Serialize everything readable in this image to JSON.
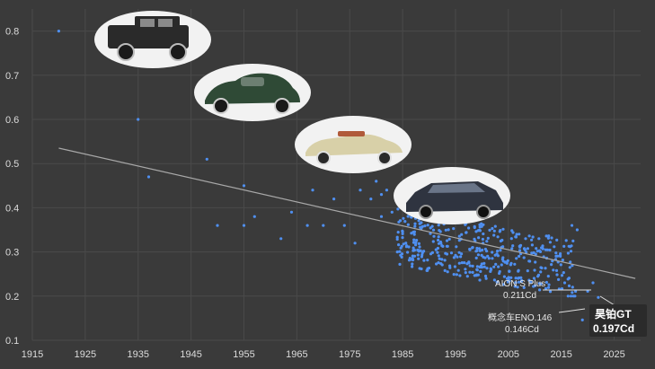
{
  "chart_data": {
    "type": "scatter",
    "title": "",
    "xlabel": "",
    "ylabel": "",
    "xlim": [
      1915,
      2030
    ],
    "ylim": [
      0.1,
      0.85
    ],
    "x_ticks": [
      1915,
      1925,
      1935,
      1945,
      1955,
      1965,
      1975,
      1985,
      1995,
      2005,
      2015,
      2025
    ],
    "y_ticks": [
      0.1,
      0.2,
      0.3,
      0.4,
      0.5,
      0.6,
      0.7,
      0.8
    ],
    "x_tick_labels": [
      "1915",
      "1925",
      "1935",
      "1945",
      "1955",
      "1965",
      "1975",
      "1985",
      "1995",
      "2005",
      "2015",
      "2025"
    ],
    "y_tick_labels": [
      "0.1",
      "0.2",
      "0.3",
      "0.4",
      "0.5",
      "0.6",
      "0.7",
      "0.8"
    ],
    "grid": true,
    "point_color": "#4f8ff0",
    "trendline": {
      "x": [
        1920,
        2029
      ],
      "y": [
        0.535,
        0.24
      ],
      "color": "#a8a8a8"
    },
    "annotations": [
      {
        "x": 2021,
        "y": 0.211,
        "line1": "AION S Plus",
        "line2": "0.211Cd"
      },
      {
        "x": 2019,
        "y": 0.146,
        "line1": "概念车ENO.146",
        "line2": "0.146Cd"
      }
    ],
    "highlight": {
      "x": 2022,
      "y": 0.197,
      "line1": "昊铂GT",
      "line2": "0.197Cd"
    }
  },
  "illustrations": [
    {
      "name": "vintage-sedan-1930s-icon",
      "body_color": "#2a2a2a"
    },
    {
      "name": "green-coupe-1940s-icon",
      "body_color": "#2f4a36"
    },
    {
      "name": "cream-convertible-1950s-icon",
      "body_color": "#d8d0a8"
    },
    {
      "name": "dark-sedan-1990s-icon",
      "body_color": "#2f3440"
    }
  ]
}
